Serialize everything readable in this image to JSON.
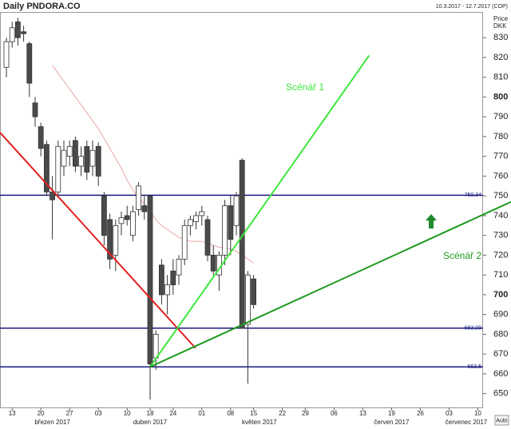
{
  "chart_data": {
    "type": "candlestick",
    "title": "Daily PNDORA.CO",
    "subtitle": "10.3.2017 - 12.7.2017 (COP)",
    "y_label": "Price",
    "unit": "DKK",
    "scale_button": "Auto",
    "categories": [
      null,
      "13",
      null,
      null,
      null,
      null,
      "20",
      null,
      null,
      null,
      null,
      "27",
      null,
      null,
      null,
      null,
      "03",
      null,
      null,
      null,
      null,
      "10",
      null,
      null,
      null,
      "18",
      null,
      null,
      null,
      "24",
      null,
      null,
      null,
      null,
      "01",
      null,
      null,
      null,
      null,
      "08",
      null,
      null,
      null,
      "15",
      null,
      null,
      null,
      null,
      "22",
      null,
      null,
      null,
      "29",
      null,
      null,
      null,
      null,
      "06",
      null,
      null,
      null,
      null,
      "13",
      null,
      null,
      null,
      null,
      "19",
      null,
      null,
      null,
      null,
      "26",
      null,
      null,
      null,
      null,
      "03",
      null,
      null,
      null,
      null,
      "10"
    ],
    "month_labels": [
      null,
      null,
      null,
      null,
      null,
      null,
      null,
      null,
      "březen 2017",
      null,
      null,
      null,
      null,
      null,
      null,
      null,
      null,
      null,
      null,
      null,
      null,
      null,
      null,
      null,
      null,
      "duben 2017",
      null,
      null,
      null,
      null,
      null,
      null,
      null,
      null,
      null,
      null,
      null,
      null,
      null,
      null,
      null,
      null,
      null,
      null,
      "květen 2017",
      null,
      null,
      null,
      null,
      null,
      null,
      null,
      null,
      null,
      null,
      null,
      null,
      null,
      null,
      null,
      null,
      null,
      null,
      null,
      null,
      null,
      null,
      "červen 2017",
      null,
      null,
      null,
      null,
      null,
      null,
      null,
      null,
      null,
      null,
      null,
      null,
      "červenec 2017",
      null,
      null
    ],
    "open": [
      815,
      828,
      838,
      833,
      827,
      797,
      785,
      776,
      752,
      752,
      765,
      770,
      778,
      765,
      775,
      765,
      775,
      750,
      738,
      720,
      736,
      740,
      730,
      743,
      745,
      750,
      668,
      715,
      700,
      712,
      710,
      718,
      735,
      737,
      740,
      738,
      720,
      710,
      720,
      745,
      735,
      768,
      685,
      708,
      null,
      null,
      null,
      null,
      null,
      null,
      null,
      null,
      null,
      null,
      null,
      null,
      null,
      null,
      null,
      null,
      null,
      null,
      null,
      null,
      null,
      null,
      null,
      null,
      null,
      null,
      null,
      null,
      null,
      null,
      null,
      null,
      null,
      null,
      null,
      null,
      null,
      null,
      null
    ],
    "high": [
      830,
      838,
      840,
      836,
      828,
      800,
      787,
      778,
      760,
      778,
      778,
      778,
      780,
      775,
      778,
      778,
      777,
      752,
      741,
      738,
      742,
      745,
      745,
      757,
      750,
      750,
      682,
      718,
      710,
      718,
      720,
      738,
      740,
      742,
      745,
      740,
      725,
      722,
      748,
      750,
      752,
      769,
      712,
      710,
      null,
      null,
      null,
      null,
      null,
      null,
      null,
      null,
      null,
      null,
      null,
      null,
      null,
      null,
      null,
      null,
      null,
      null,
      null,
      null,
      null,
      null,
      null,
      null,
      null,
      null,
      null,
      null,
      null,
      null,
      null,
      null,
      null,
      null,
      null,
      null,
      null,
      null,
      null
    ],
    "low": [
      810,
      825,
      826,
      828,
      800,
      785,
      770,
      750,
      728,
      749,
      760,
      765,
      762,
      760,
      758,
      760,
      755,
      725,
      713,
      712,
      730,
      735,
      727,
      740,
      738,
      647,
      662,
      695,
      690,
      700,
      705,
      715,
      730,
      733,
      735,
      717,
      710,
      702,
      715,
      720,
      730,
      683,
      655,
      693,
      null,
      null,
      null,
      null,
      null,
      null,
      null,
      null,
      null,
      null,
      null,
      null,
      null,
      null,
      null,
      null,
      null,
      null,
      null,
      null,
      null,
      null,
      null,
      null,
      null,
      null,
      null,
      null,
      null,
      null,
      null,
      null,
      null,
      null,
      null,
      null,
      null,
      null,
      null
    ],
    "close": [
      828,
      835,
      830,
      832,
      807,
      790,
      774,
      752,
      748,
      775,
      773,
      775,
      765,
      770,
      762,
      773,
      760,
      730,
      718,
      735,
      739,
      738,
      742,
      755,
      742,
      665,
      680,
      700,
      705,
      705,
      718,
      735,
      738,
      740,
      742,
      720,
      712,
      720,
      745,
      728,
      750,
      683,
      710,
      695,
      null,
      null,
      null,
      null,
      null,
      null,
      null,
      null,
      null,
      null,
      null,
      null,
      null,
      null,
      null,
      null,
      null,
      null,
      null,
      null,
      null,
      null,
      null,
      null,
      null,
      null,
      null,
      null,
      null,
      null,
      null,
      null,
      null,
      null,
      null,
      null,
      null,
      null,
      null
    ],
    "up_color": "#ffffff",
    "down_color": "#4a4a4a",
    "moving_average": {
      "color": "#e8a8a8",
      "values": [
        null,
        null,
        null,
        null,
        null,
        null,
        null,
        null,
        816,
        812,
        808,
        804,
        800,
        796,
        792,
        788,
        784,
        779,
        774,
        769,
        764,
        758,
        753,
        749,
        746,
        742,
        738,
        735,
        733,
        731,
        729,
        728,
        727,
        727,
        727,
        726,
        725,
        724,
        724,
        723,
        722,
        720,
        718,
        716,
        null,
        null,
        null,
        null,
        null,
        null,
        null,
        null,
        null,
        null,
        null,
        null,
        null,
        null,
        null,
        null,
        null,
        null,
        null,
        null,
        null,
        null,
        null,
        null,
        null,
        null,
        null,
        null,
        null,
        null,
        null,
        null,
        null,
        null,
        null,
        null,
        null,
        null,
        null
      ]
    },
    "levels": [
      {
        "value": 750.34,
        "label": "750,34"
      },
      {
        "value": 683.09,
        "label": "683,09"
      },
      {
        "value": 663.5,
        "label": "663,5"
      }
    ],
    "level_color": "#1a1a80",
    "trendlines": [
      {
        "color": "#e02020",
        "x": [
          -1.1,
          32.9
        ],
        "values": [
          782,
          673
        ]
      },
      {
        "color": "#3ee63e",
        "x": [
          25,
          63.1
        ],
        "values": [
          663.5,
          821
        ]
      },
      {
        "color": "#1e9a1e",
        "x": [
          25,
          87.8
        ],
        "values": [
          663.5,
          747
        ]
      }
    ],
    "annotations": [
      {
        "text": "Scénář 1",
        "color": "#3ee63e"
      },
      {
        "text": "Scénář 2",
        "color": "#1e9a1e"
      }
    ],
    "ylim": [
      643,
      843
    ],
    "yticks": [
      650,
      660,
      670,
      680,
      690,
      700,
      710,
      720,
      730,
      740,
      750,
      760,
      770,
      780,
      790,
      800,
      810,
      820,
      830
    ]
  }
}
